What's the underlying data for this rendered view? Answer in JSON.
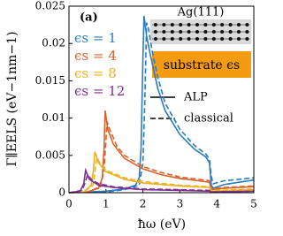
{
  "chart_data": {
    "type": "line",
    "panel_label": "(a)",
    "x_label": "ħω (eV)",
    "y_label": "Γ∥EELS (eV−1nm−1)",
    "xlim": [
      0,
      5
    ],
    "ylim": [
      0,
      0.025
    ],
    "xticks": [
      0,
      1,
      2,
      3,
      4,
      5
    ],
    "yticks": [
      0,
      0.005,
      0.01,
      0.015,
      0.02,
      0.025
    ],
    "style_legend": [
      "ALP",
      "classical"
    ],
    "inset": {
      "top_label": "Ag(111)",
      "substrate_label": "substrate ϵs"
    },
    "series": [
      {
        "name": "ϵs = 1",
        "color": "#2a7cc0",
        "lines": [
          {
            "x": [
              0,
              1,
              1.5,
              1.8,
              1.9,
              1.95,
              2.0,
              2.03,
              2.1,
              2.2,
              2.4,
              2.6,
              3.0,
              3.4,
              3.7,
              3.8,
              3.85,
              3.9,
              4.2,
              4.6,
              5
            ],
            "values": [
              0,
              0.0002,
              0.0005,
              0.001,
              0.002,
              0.006,
              0.018,
              0.0237,
              0.021,
              0.0185,
              0.014,
              0.011,
              0.0078,
              0.0058,
              0.0048,
              0.004,
              0.001,
              0.0006,
              0.0011,
              0.0014,
              0.0017
            ]
          },
          {
            "x": [
              0,
              1,
              1.5,
              1.9,
              2.0,
              2.05,
              2.1,
              2.15,
              2.25,
              2.4,
              2.6,
              3.0,
              3.4,
              3.7,
              3.8,
              3.85,
              3.9,
              4.2,
              4.6,
              5
            ],
            "values": [
              0,
              0.0001,
              0.0004,
              0.001,
              0.004,
              0.012,
              0.0228,
              0.022,
              0.019,
              0.0155,
              0.012,
              0.0085,
              0.0063,
              0.0052,
              0.0045,
              0.0022,
              0.0012,
              0.0016,
              0.0018,
              0.002
            ]
          }
        ]
      },
      {
        "name": "ϵs = 4",
        "color": "#d9622b",
        "lines": [
          {
            "x": [
              0,
              0.5,
              0.8,
              0.9,
              0.95,
              0.98,
              1.05,
              1.2,
              1.5,
              2,
              2.5,
              3,
              3.5,
              3.8,
              3.85,
              4.2,
              5
            ],
            "values": [
              0,
              0.0001,
              0.0006,
              0.002,
              0.006,
              0.011,
              0.0085,
              0.0065,
              0.0046,
              0.0032,
              0.0024,
              0.0019,
              0.0016,
              0.0014,
              0.0004,
              0.0006,
              0.0008
            ]
          },
          {
            "x": [
              0,
              0.5,
              0.85,
              0.95,
              1.0,
              1.03,
              1.1,
              1.3,
              1.5,
              2,
              2.5,
              3,
              3.5,
              3.8,
              3.85,
              4.2,
              5
            ],
            "values": [
              0,
              0.0001,
              0.0008,
              0.003,
              0.007,
              0.0095,
              0.0085,
              0.0062,
              0.005,
              0.0035,
              0.0027,
              0.0021,
              0.0018,
              0.0016,
              0.0005,
              0.0007,
              0.0009
            ]
          }
        ]
      },
      {
        "name": "ϵs = 8",
        "color": "#edb120",
        "lines": [
          {
            "x": [
              0,
              0.4,
              0.6,
              0.66,
              0.7,
              0.8,
              1,
              1.5,
              2,
              3,
              3.8,
              3.85,
              5
            ],
            "values": [
              0,
              0.0001,
              0.001,
              0.003,
              0.0055,
              0.004,
              0.0028,
              0.0018,
              0.0013,
              0.0009,
              0.0007,
              0.0002,
              0.0004
            ]
          },
          {
            "x": [
              0,
              0.4,
              0.65,
              0.72,
              0.76,
              0.85,
              1,
              1.5,
              2,
              3,
              3.8,
              3.85,
              5
            ],
            "values": [
              0,
              0.0001,
              0.001,
              0.0035,
              0.0047,
              0.0038,
              0.003,
              0.002,
              0.0015,
              0.001,
              0.0008,
              0.0003,
              0.0005
            ]
          }
        ]
      },
      {
        "name": "ϵs = 12",
        "color": "#7e2f8e",
        "lines": [
          {
            "x": [
              0,
              0.3,
              0.4,
              0.45,
              0.55,
              0.8,
              1.2,
              2,
              3,
              3.8,
              3.85,
              5
            ],
            "values": [
              0,
              0.0002,
              0.0012,
              0.003,
              0.0018,
              0.001,
              0.0007,
              0.0004,
              0.0003,
              0.0002,
              0.0001,
              0.0002
            ]
          },
          {
            "x": [
              0,
              0.35,
              0.45,
              0.5,
              0.6,
              0.8,
              1.2,
              2,
              3,
              3.8,
              3.85,
              5
            ],
            "values": [
              0,
              0.0003,
              0.0015,
              0.0024,
              0.0018,
              0.0012,
              0.0008,
              0.0005,
              0.0004,
              0.0003,
              0.0001,
              0.0002
            ]
          }
        ]
      }
    ]
  }
}
